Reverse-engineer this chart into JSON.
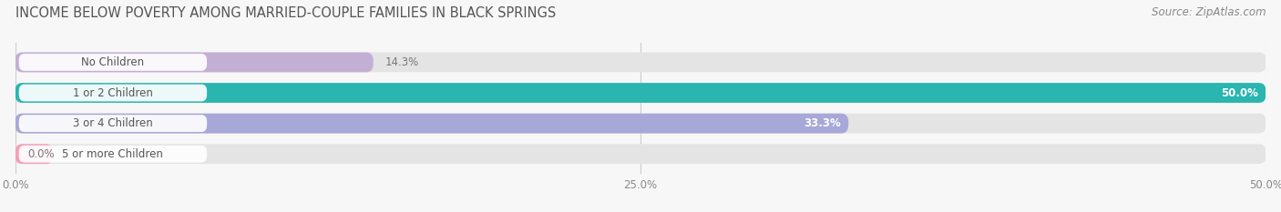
{
  "title": "INCOME BELOW POVERTY AMONG MARRIED-COUPLE FAMILIES IN BLACK SPRINGS",
  "source": "Source: ZipAtlas.com",
  "categories": [
    "No Children",
    "1 or 2 Children",
    "3 or 4 Children",
    "5 or more Children"
  ],
  "values": [
    14.3,
    50.0,
    33.3,
    0.0
  ],
  "bar_colors": [
    "#c4afd4",
    "#2ab5b0",
    "#a8a8d8",
    "#f4a0b8"
  ],
  "xlim": [
    0,
    50.0
  ],
  "xticks": [
    0.0,
    25.0,
    50.0
  ],
  "xtick_labels": [
    "0.0%",
    "25.0%",
    "50.0%"
  ],
  "background_color": "#f7f7f7",
  "bar_background_color": "#e4e4e4",
  "title_fontsize": 10.5,
  "source_fontsize": 8.5,
  "label_fontsize": 8.5,
  "tick_fontsize": 8.5,
  "bar_height": 0.62,
  "value_label_threshold": 20
}
